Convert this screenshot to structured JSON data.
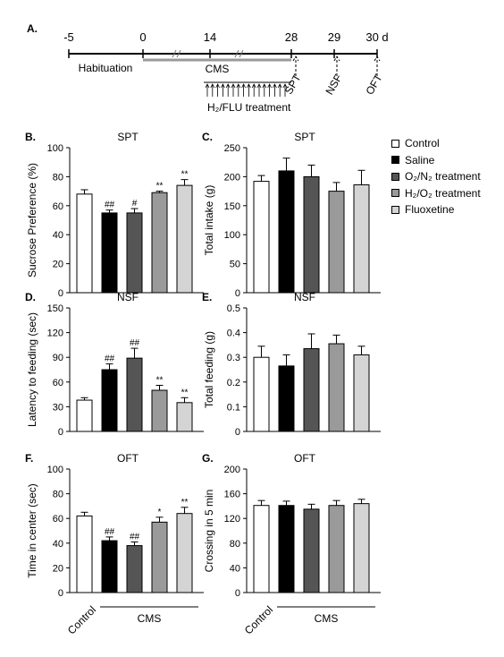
{
  "timeline": {
    "panel_letter": "A.",
    "ticks": [
      "-5",
      "0",
      "14",
      "28",
      "29",
      "30 d"
    ],
    "labels": {
      "habituation": "Habituation",
      "cms": "CMS",
      "treatment": "H₂/FLU treatment"
    },
    "tests": [
      "SPT",
      "NSF",
      "OFT"
    ]
  },
  "legend": [
    {
      "name": "Control",
      "color": "#ffffff"
    },
    {
      "name": "Saline",
      "color": "#000000"
    },
    {
      "name": "O₂/N₂ treatment",
      "color": "#555555"
    },
    {
      "name": "H₂/O₂ treatment",
      "color": "#9a9a9a"
    },
    {
      "name": "Fluoxetine",
      "color": "#d4d4d4"
    }
  ],
  "bottom_labels": {
    "control": "Control",
    "cms": "CMS"
  },
  "chart_data": [
    {
      "letter": "B.",
      "type": "bar",
      "title": "SPT",
      "ylabel": "Sucrose Preference (%)",
      "ylim": [
        0,
        100
      ],
      "yticks": [
        0,
        20,
        40,
        60,
        80,
        100
      ],
      "categories": [
        "Control",
        "Saline",
        "O₂/N₂ treatment",
        "H₂/O₂ treatment",
        "Fluoxetine"
      ],
      "values": [
        68,
        55,
        55,
        69,
        74
      ],
      "errors": [
        3,
        2,
        3,
        1,
        4
      ],
      "annotations": [
        "",
        "##",
        "#",
        "**",
        "**"
      ]
    },
    {
      "letter": "C.",
      "type": "bar",
      "title": "SPT",
      "ylabel": "Total intake (g)",
      "ylim": [
        0,
        250
      ],
      "yticks": [
        0,
        50,
        100,
        150,
        200,
        250
      ],
      "categories": [
        "Control",
        "Saline",
        "O₂/N₂ treatment",
        "H₂/O₂ treatment",
        "Fluoxetine"
      ],
      "values": [
        192,
        210,
        200,
        175,
        186
      ],
      "errors": [
        10,
        22,
        20,
        15,
        25
      ],
      "annotations": [
        "",
        "",
        "",
        "",
        ""
      ]
    },
    {
      "letter": "D.",
      "type": "bar",
      "title": "NSF",
      "ylabel": "Latency to feeding (sec)",
      "ylim": [
        0,
        150
      ],
      "yticks": [
        0,
        30,
        60,
        90,
        120,
        150
      ],
      "categories": [
        "Control",
        "Saline",
        "O₂/N₂ treatment",
        "H₂/O₂ treatment",
        "Fluoxetine"
      ],
      "values": [
        38,
        75,
        89,
        50,
        35
      ],
      "errors": [
        3,
        7,
        12,
        6,
        6
      ],
      "annotations": [
        "",
        "##",
        "##",
        "**",
        "**"
      ]
    },
    {
      "letter": "E.",
      "type": "bar",
      "title": "NSF",
      "ylabel": "Total feeding (g)",
      "ylim": [
        0,
        0.5
      ],
      "yticks": [
        0,
        0.1,
        0.2,
        0.3,
        0.4,
        0.5
      ],
      "categories": [
        "Control",
        "Saline",
        "O₂/N₂ treatment",
        "H₂/O₂ treatment",
        "Fluoxetine"
      ],
      "values": [
        0.3,
        0.265,
        0.335,
        0.355,
        0.31
      ],
      "errors": [
        0.045,
        0.045,
        0.06,
        0.035,
        0.035
      ],
      "annotations": [
        "",
        "",
        "",
        "",
        ""
      ]
    },
    {
      "letter": "F.",
      "type": "bar",
      "title": "OFT",
      "ylabel": "Time in center  (sec)",
      "ylim": [
        0,
        100
      ],
      "yticks": [
        0,
        20,
        40,
        60,
        80,
        100
      ],
      "categories": [
        "Control",
        "Saline",
        "O₂/N₂ treatment",
        "H₂/O₂ treatment",
        "Fluoxetine"
      ],
      "values": [
        62,
        42,
        38,
        57,
        64
      ],
      "errors": [
        3,
        3,
        3,
        4,
        5
      ],
      "annotations": [
        "",
        "##",
        "##",
        "*",
        "**"
      ]
    },
    {
      "letter": "G.",
      "type": "bar",
      "title": "OFT",
      "ylabel": "Crossing in 5 min",
      "ylim": [
        0,
        200
      ],
      "yticks": [
        0,
        40,
        80,
        120,
        160,
        200
      ],
      "categories": [
        "Control",
        "Saline",
        "O₂/N₂ treatment",
        "H₂/O₂ treatment",
        "Fluoxetine"
      ],
      "values": [
        141,
        141,
        135,
        141,
        144
      ],
      "errors": [
        8,
        7,
        8,
        8,
        7
      ],
      "annotations": [
        "",
        "",
        "",
        "",
        ""
      ]
    }
  ]
}
